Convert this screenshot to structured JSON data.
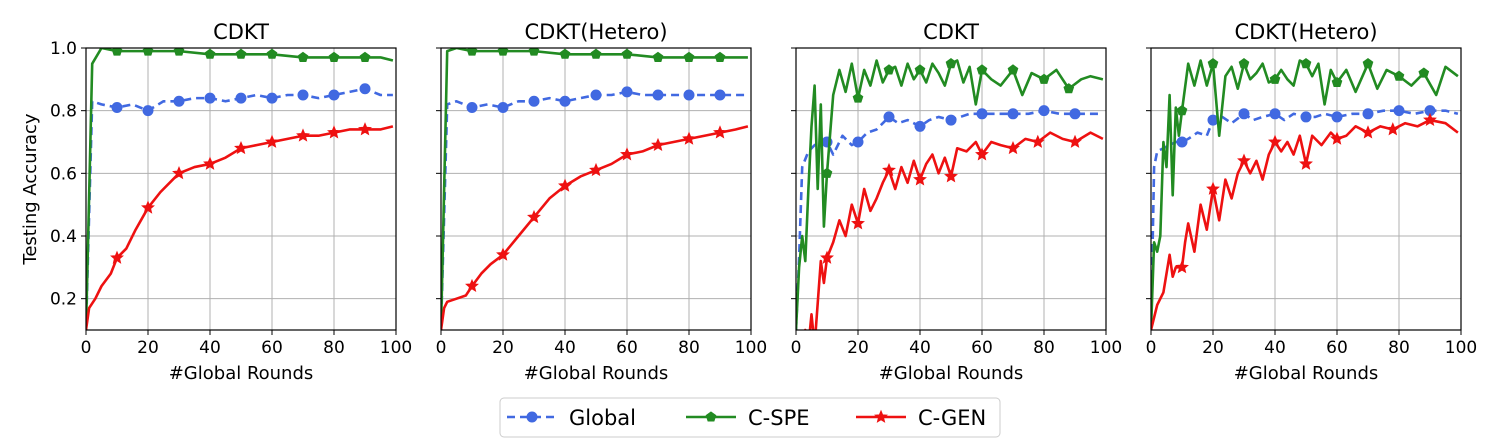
{
  "figure": {
    "colors": {
      "Global": "#4169e1",
      "C-SPE": "#228b22",
      "C-GEN": "#ee1111",
      "grid": "#b0b0b0",
      "axis": "#000000"
    },
    "legend": {
      "placement": "bottom-center",
      "entries": [
        {
          "label": "Global",
          "color": "#4169e1",
          "dash": "dashed",
          "marker": "circle"
        },
        {
          "label": "C-SPE",
          "color": "#228b22",
          "dash": "solid",
          "marker": "pentagon"
        },
        {
          "label": "C-GEN",
          "color": "#ee1111",
          "dash": "solid",
          "marker": "star"
        }
      ]
    }
  },
  "chart_data": [
    {
      "type": "line",
      "title": "CDKT",
      "xlabel": "#Global Rounds",
      "ylabel": "Testing Accuracy",
      "xlim": [
        0,
        100
      ],
      "ylim": [
        0.1,
        1.0
      ],
      "xticks": [
        "0",
        "20",
        "40",
        "60",
        "80",
        "100"
      ],
      "yticks": [
        "0.2",
        "0.4",
        "0.6",
        "0.8",
        "1.0"
      ],
      "grid": true,
      "series": [
        {
          "name": "Global",
          "x": [
            0,
            2,
            5,
            10,
            15,
            20,
            25,
            30,
            35,
            40,
            45,
            50,
            55,
            60,
            65,
            70,
            75,
            80,
            85,
            90,
            95,
            99
          ],
          "y": [
            0.1,
            0.83,
            0.82,
            0.81,
            0.82,
            0.8,
            0.83,
            0.83,
            0.84,
            0.84,
            0.83,
            0.84,
            0.85,
            0.84,
            0.85,
            0.85,
            0.84,
            0.85,
            0.86,
            0.87,
            0.85,
            0.85
          ]
        },
        {
          "name": "C-SPE",
          "x": [
            0,
            2,
            5,
            10,
            20,
            30,
            40,
            50,
            60,
            70,
            80,
            90,
            95,
            99
          ],
          "y": [
            0.1,
            0.95,
            1.0,
            0.99,
            0.99,
            0.99,
            0.98,
            0.98,
            0.98,
            0.97,
            0.97,
            0.97,
            0.97,
            0.96
          ]
        },
        {
          "name": "C-GEN",
          "x": [
            0,
            1,
            3,
            5,
            8,
            10,
            13,
            16,
            20,
            24,
            28,
            30,
            35,
            40,
            45,
            50,
            55,
            60,
            65,
            70,
            75,
            80,
            85,
            90,
            95,
            99
          ],
          "y": [
            0.1,
            0.17,
            0.2,
            0.24,
            0.28,
            0.33,
            0.36,
            0.42,
            0.49,
            0.54,
            0.58,
            0.6,
            0.62,
            0.63,
            0.65,
            0.68,
            0.69,
            0.7,
            0.71,
            0.72,
            0.72,
            0.73,
            0.74,
            0.74,
            0.74,
            0.75
          ]
        }
      ]
    },
    {
      "type": "line",
      "title": "CDKT(Hetero)",
      "xlabel": "#Global Rounds",
      "ylabel": "",
      "xlim": [
        0,
        100
      ],
      "ylim": [
        0.1,
        1.0
      ],
      "xticks": [
        "0",
        "20",
        "40",
        "60",
        "80",
        "100"
      ],
      "yticks": [
        "0.2",
        "0.4",
        "0.6",
        "0.8",
        "1.0"
      ],
      "grid": true,
      "series": [
        {
          "name": "Global",
          "x": [
            0,
            2,
            5,
            10,
            15,
            20,
            25,
            30,
            35,
            40,
            45,
            50,
            55,
            60,
            65,
            70,
            75,
            80,
            85,
            90,
            95,
            99
          ],
          "y": [
            0.1,
            0.82,
            0.83,
            0.81,
            0.82,
            0.81,
            0.83,
            0.83,
            0.84,
            0.83,
            0.84,
            0.85,
            0.85,
            0.86,
            0.85,
            0.85,
            0.85,
            0.85,
            0.85,
            0.85,
            0.85,
            0.85
          ]
        },
        {
          "name": "C-SPE",
          "x": [
            0,
            2,
            5,
            10,
            20,
            30,
            40,
            50,
            60,
            70,
            80,
            90,
            95,
            99
          ],
          "y": [
            0.1,
            0.99,
            1.0,
            0.99,
            0.99,
            0.99,
            0.98,
            0.98,
            0.98,
            0.97,
            0.97,
            0.97,
            0.97,
            0.97
          ]
        },
        {
          "name": "C-GEN",
          "x": [
            0,
            1,
            2,
            5,
            8,
            10,
            13,
            16,
            20,
            25,
            30,
            35,
            40,
            45,
            50,
            55,
            60,
            65,
            70,
            75,
            80,
            85,
            90,
            95,
            99
          ],
          "y": [
            0.1,
            0.17,
            0.19,
            0.2,
            0.21,
            0.24,
            0.28,
            0.31,
            0.34,
            0.4,
            0.46,
            0.52,
            0.56,
            0.59,
            0.61,
            0.63,
            0.66,
            0.67,
            0.69,
            0.7,
            0.71,
            0.72,
            0.73,
            0.74,
            0.75
          ]
        }
      ]
    },
    {
      "type": "line",
      "title": "CDKT",
      "xlabel": "#Global Rounds",
      "ylabel": "",
      "xlim": [
        0,
        100
      ],
      "ylim": [
        0.1,
        1.0
      ],
      "xticks": [
        "0",
        "20",
        "40",
        "60",
        "80",
        "100"
      ],
      "yticks": [
        "0.2",
        "0.4",
        "0.6",
        "0.8",
        "1.0"
      ],
      "grid": true,
      "series": [
        {
          "name": "Global",
          "x": [
            0,
            1,
            2,
            4,
            6,
            8,
            10,
            12,
            15,
            18,
            20,
            23,
            26,
            30,
            33,
            36,
            40,
            43,
            46,
            50,
            53,
            56,
            60,
            65,
            70,
            75,
            80,
            85,
            90,
            95,
            99
          ],
          "y": [
            0.1,
            0.33,
            0.62,
            0.67,
            0.69,
            0.7,
            0.7,
            0.66,
            0.72,
            0.69,
            0.7,
            0.73,
            0.74,
            0.78,
            0.76,
            0.77,
            0.75,
            0.77,
            0.78,
            0.77,
            0.78,
            0.79,
            0.79,
            0.79,
            0.79,
            0.79,
            0.8,
            0.79,
            0.79,
            0.79,
            0.79
          ]
        },
        {
          "name": "C-SPE",
          "x": [
            0,
            1,
            2,
            3,
            4,
            5,
            6,
            7,
            8,
            9,
            10,
            12,
            14,
            16,
            18,
            20,
            22,
            24,
            26,
            28,
            30,
            32,
            34,
            36,
            38,
            40,
            42,
            44,
            46,
            48,
            50,
            52,
            54,
            56,
            58,
            60,
            63,
            66,
            70,
            73,
            76,
            80,
            84,
            88,
            92,
            95,
            99
          ],
          "y": [
            0.1,
            0.3,
            0.4,
            0.32,
            0.55,
            0.75,
            0.88,
            0.55,
            0.82,
            0.43,
            0.6,
            0.85,
            0.93,
            0.86,
            0.95,
            0.84,
            0.93,
            0.88,
            0.96,
            0.89,
            0.93,
            0.94,
            0.88,
            0.95,
            0.9,
            0.93,
            0.89,
            0.95,
            0.92,
            0.88,
            0.95,
            0.96,
            0.89,
            0.94,
            0.82,
            0.93,
            0.9,
            0.88,
            0.93,
            0.85,
            0.92,
            0.9,
            0.93,
            0.87,
            0.9,
            0.91,
            0.9
          ]
        },
        {
          "name": "C-GEN",
          "x": [
            0,
            2,
            3,
            4,
            5,
            6,
            8,
            9,
            10,
            12,
            14,
            16,
            18,
            20,
            22,
            24,
            26,
            28,
            30,
            32,
            34,
            36,
            38,
            40,
            42,
            44,
            46,
            48,
            50,
            52,
            55,
            58,
            60,
            63,
            66,
            70,
            74,
            78,
            82,
            86,
            90,
            95,
            99
          ],
          "y": [
            0.1,
            0.06,
            0.1,
            0.05,
            0.15,
            0.05,
            0.32,
            0.25,
            0.33,
            0.38,
            0.45,
            0.4,
            0.5,
            0.44,
            0.55,
            0.48,
            0.52,
            0.57,
            0.61,
            0.55,
            0.62,
            0.57,
            0.64,
            0.58,
            0.63,
            0.66,
            0.6,
            0.65,
            0.59,
            0.68,
            0.67,
            0.7,
            0.66,
            0.7,
            0.69,
            0.68,
            0.71,
            0.7,
            0.73,
            0.71,
            0.7,
            0.73,
            0.71
          ]
        }
      ]
    },
    {
      "type": "line",
      "title": "CDKT(Hetero)",
      "xlabel": "#Global Rounds",
      "ylabel": "",
      "xlim": [
        0,
        100
      ],
      "ylim": [
        0.1,
        1.0
      ],
      "xticks": [
        "0",
        "20",
        "40",
        "60",
        "80",
        "100"
      ],
      "yticks": [
        "0.2",
        "0.4",
        "0.6",
        "0.8",
        "1.0"
      ],
      "grid": true,
      "series": [
        {
          "name": "Global",
          "x": [
            0,
            1,
            2,
            4,
            6,
            8,
            10,
            12,
            15,
            18,
            20,
            23,
            26,
            30,
            33,
            36,
            40,
            43,
            46,
            50,
            53,
            56,
            60,
            65,
            70,
            75,
            80,
            85,
            90,
            95,
            99
          ],
          "y": [
            0.1,
            0.62,
            0.67,
            0.68,
            0.69,
            0.7,
            0.7,
            0.71,
            0.73,
            0.72,
            0.77,
            0.78,
            0.76,
            0.79,
            0.77,
            0.78,
            0.79,
            0.77,
            0.79,
            0.78,
            0.78,
            0.79,
            0.78,
            0.79,
            0.79,
            0.8,
            0.8,
            0.79,
            0.8,
            0.8,
            0.79
          ]
        },
        {
          "name": "C-SPE",
          "x": [
            0,
            1,
            2,
            3,
            4,
            5,
            6,
            7,
            8,
            9,
            10,
            12,
            14,
            16,
            18,
            20,
            22,
            24,
            26,
            28,
            30,
            32,
            34,
            36,
            38,
            40,
            42,
            44,
            46,
            48,
            50,
            52,
            54,
            56,
            58,
            60,
            63,
            66,
            70,
            73,
            76,
            80,
            84,
            88,
            92,
            95,
            99
          ],
          "y": [
            0.1,
            0.38,
            0.35,
            0.4,
            0.7,
            0.62,
            0.85,
            0.53,
            0.81,
            0.72,
            0.8,
            0.95,
            0.88,
            0.96,
            0.88,
            0.95,
            0.72,
            0.91,
            0.94,
            0.87,
            0.95,
            0.9,
            0.92,
            0.95,
            0.89,
            0.9,
            0.93,
            0.9,
            0.88,
            0.96,
            0.95,
            0.91,
            0.95,
            0.82,
            0.93,
            0.89,
            0.93,
            0.86,
            0.95,
            0.87,
            0.93,
            0.91,
            0.88,
            0.92,
            0.85,
            0.94,
            0.91
          ]
        },
        {
          "name": "C-GEN",
          "x": [
            0,
            2,
            4,
            6,
            7,
            8,
            10,
            11,
            12,
            14,
            16,
            18,
            20,
            22,
            24,
            26,
            28,
            30,
            32,
            34,
            36,
            38,
            40,
            42,
            44,
            46,
            48,
            50,
            52,
            55,
            58,
            60,
            63,
            66,
            70,
            74,
            78,
            82,
            86,
            90,
            95,
            99
          ],
          "y": [
            0.1,
            0.18,
            0.22,
            0.34,
            0.27,
            0.3,
            0.3,
            0.38,
            0.44,
            0.35,
            0.5,
            0.42,
            0.55,
            0.45,
            0.58,
            0.52,
            0.6,
            0.64,
            0.6,
            0.64,
            0.58,
            0.66,
            0.7,
            0.67,
            0.7,
            0.66,
            0.72,
            0.63,
            0.72,
            0.69,
            0.73,
            0.71,
            0.72,
            0.75,
            0.73,
            0.75,
            0.74,
            0.76,
            0.75,
            0.77,
            0.76,
            0.73
          ]
        }
      ]
    }
  ]
}
